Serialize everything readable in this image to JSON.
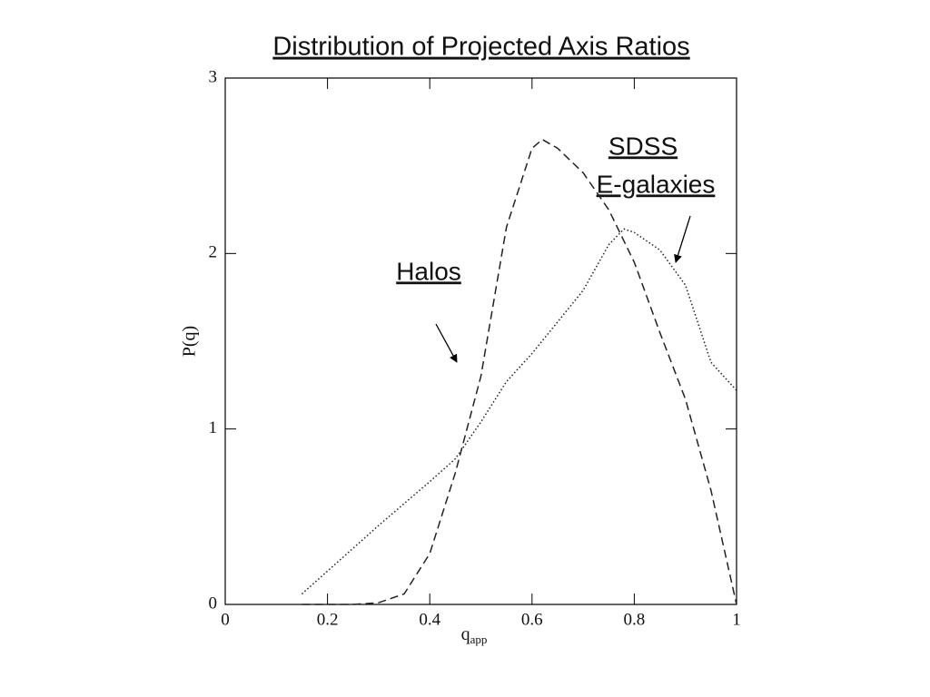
{
  "chart_data": {
    "type": "line",
    "title": "Distribution of Projected Axis Ratios",
    "x_label": {
      "main": "q",
      "sub": "app"
    },
    "y_label": "P(q)",
    "xlim": [
      0,
      1
    ],
    "ylim": [
      0,
      3
    ],
    "xticks": [
      0,
      0.2,
      0.4,
      0.6,
      0.8,
      1
    ],
    "yticks": [
      0,
      1,
      2,
      3
    ],
    "series": [
      {
        "color": "#222222",
        "dash": "9,5",
        "x": [
          0.15,
          0.2,
          0.25,
          0.3,
          0.35,
          0.4,
          0.45,
          0.5,
          0.55,
          0.6,
          0.62,
          0.65,
          0.7,
          0.75,
          0.8,
          0.85,
          0.9,
          0.95,
          1.0
        ],
        "values": [
          0,
          0,
          0,
          0.01,
          0.06,
          0.29,
          0.75,
          1.3,
          2.15,
          2.6,
          2.65,
          2.6,
          2.46,
          2.25,
          1.95,
          1.55,
          1.17,
          0.65,
          0
        ]
      },
      {
        "color": "#222222",
        "dash": "1.5,2.5",
        "x": [
          0.15,
          0.2,
          0.3,
          0.4,
          0.45,
          0.5,
          0.55,
          0.6,
          0.7,
          0.75,
          0.78,
          0.8,
          0.85,
          0.9,
          0.95,
          1.0
        ],
        "values": [
          0.06,
          0.19,
          0.45,
          0.7,
          0.83,
          1.04,
          1.27,
          1.43,
          1.79,
          2.05,
          2.14,
          2.12,
          2.02,
          1.82,
          1.38,
          1.22
        ]
      }
    ],
    "annotations": [
      "Halos",
      "SDSS",
      "E-galaxies"
    ]
  }
}
